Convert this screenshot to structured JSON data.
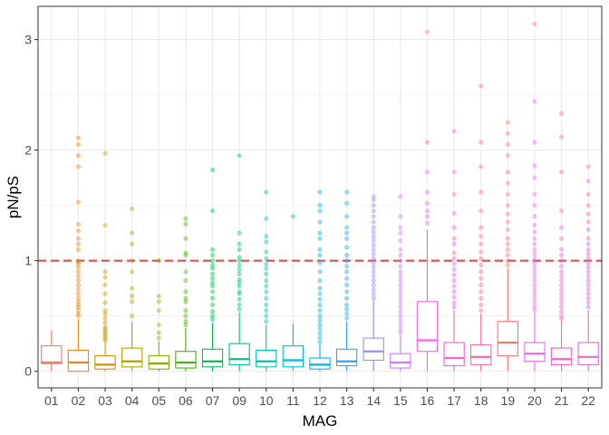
{
  "chart_data": {
    "type": "box",
    "xlabel": "MAG",
    "ylabel": "pN/pS",
    "ylim": [
      -0.15,
      3.3
    ],
    "y_ticks": [
      0,
      1,
      2,
      3
    ],
    "reference_line": 1,
    "reference_line_color": "#c0504d",
    "grid": true,
    "legend": "none",
    "categories": [
      "01",
      "02",
      "03",
      "04",
      "05",
      "06",
      "07",
      "09",
      "10",
      "11",
      "12",
      "13",
      "14",
      "15",
      "16",
      "17",
      "18",
      "19",
      "20",
      "21",
      "22"
    ],
    "colors": [
      "#F8766D",
      "#E7851E",
      "#D09400",
      "#B2A100",
      "#89AC00",
      "#45B500",
      "#00BC51",
      "#00C087",
      "#00C0B2",
      "#00BCD6",
      "#00B3F2",
      "#29A3FF",
      "#9C8DFF",
      "#D277FF",
      "#F166E8",
      "#FF61C7",
      "#FF6A9E",
      "#F8766D",
      "#E76BF3",
      "#FF61C3",
      "#E16FC8"
    ],
    "boxes": [
      {
        "name": "01",
        "q1": 0.07,
        "median": 0.08,
        "q3": 0.23,
        "whisker_low": 0.0,
        "whisker_high": 0.37,
        "outliers": []
      },
      {
        "name": "02",
        "q1": 0.0,
        "median": 0.08,
        "q3": 0.19,
        "whisker_low": 0.0,
        "whisker_high": 0.47,
        "outliers": [
          0.5,
          0.52,
          0.55,
          0.58,
          0.6,
          0.63,
          0.66,
          0.7,
          0.74,
          0.78,
          0.82,
          0.86,
          0.9,
          0.94,
          0.97,
          0.99,
          1.0,
          1.1,
          1.15,
          1.2,
          1.27,
          1.33,
          1.53,
          1.85,
          1.95,
          2.05,
          2.11
        ]
      },
      {
        "name": "03",
        "q1": 0.02,
        "median": 0.06,
        "q3": 0.14,
        "whisker_low": 0.0,
        "whisker_high": 0.27,
        "outliers": [
          0.28,
          0.3,
          0.32,
          0.34,
          0.36,
          0.38,
          0.4,
          0.44,
          0.48,
          0.52,
          0.55,
          0.62,
          0.7,
          0.78,
          0.85,
          0.9,
          1.32,
          1.97
        ]
      },
      {
        "name": "04",
        "q1": 0.04,
        "median": 0.09,
        "q3": 0.21,
        "whisker_low": 0.0,
        "whisker_high": 0.45,
        "outliers": [
          0.5,
          0.63,
          0.68,
          0.75,
          0.9,
          1.0,
          1.15,
          1.25,
          1.47
        ]
      },
      {
        "name": "05",
        "q1": 0.02,
        "median": 0.07,
        "q3": 0.14,
        "whisker_low": 0.0,
        "whisker_high": 0.27,
        "outliers": [
          0.3,
          0.35,
          0.42,
          0.55,
          0.63,
          0.68,
          1.0
        ]
      },
      {
        "name": "06",
        "q1": 0.03,
        "median": 0.08,
        "q3": 0.18,
        "whisker_low": 0.0,
        "whisker_high": 0.39,
        "outliers": [
          0.42,
          0.45,
          0.5,
          0.55,
          0.63,
          0.66,
          0.72,
          0.82,
          0.9,
          1.05,
          1.07,
          1.2,
          1.33,
          1.38
        ]
      },
      {
        "name": "07",
        "q1": 0.04,
        "median": 0.09,
        "q3": 0.2,
        "whisker_low": 0.0,
        "whisker_high": 0.44,
        "outliers": [
          0.47,
          0.5,
          0.54,
          0.6,
          0.66,
          0.72,
          0.77,
          0.8,
          0.84,
          0.88,
          0.93,
          0.96,
          1.0,
          1.05,
          1.1,
          1.45,
          1.82
        ]
      },
      {
        "name": "09",
        "q1": 0.06,
        "median": 0.11,
        "q3": 0.25,
        "whisker_low": 0.0,
        "whisker_high": 0.53,
        "outliers": [
          0.56,
          0.6,
          0.65,
          0.7,
          0.72,
          0.77,
          0.8,
          0.83,
          0.88,
          0.92,
          0.96,
          1.0,
          1.03,
          1.1,
          1.15,
          1.25,
          1.95
        ]
      },
      {
        "name": "10",
        "q1": 0.04,
        "median": 0.09,
        "q3": 0.19,
        "whisker_low": 0.0,
        "whisker_high": 0.42,
        "outliers": [
          0.45,
          0.5,
          0.55,
          0.6,
          0.66,
          0.72,
          0.77,
          0.82,
          0.88,
          0.93,
          0.97,
          1.02,
          1.08,
          1.17,
          1.22,
          1.38,
          1.62
        ]
      },
      {
        "name": "11",
        "q1": 0.04,
        "median": 0.1,
        "q3": 0.23,
        "whisker_low": 0.0,
        "whisker_high": 0.43,
        "outliers": [
          1.4
        ]
      },
      {
        "name": "12",
        "q1": 0.02,
        "median": 0.06,
        "q3": 0.12,
        "whisker_low": 0.0,
        "whisker_high": 0.24,
        "outliers": [
          0.26,
          0.3,
          0.34,
          0.38,
          0.42,
          0.46,
          0.5,
          0.55,
          0.6,
          0.65,
          0.7,
          0.75,
          0.82,
          0.9,
          0.98,
          1.05,
          1.1,
          1.2,
          1.25,
          1.35,
          1.45,
          1.5,
          1.62
        ]
      },
      {
        "name": "13",
        "q1": 0.05,
        "median": 0.09,
        "q3": 0.2,
        "whisker_low": 0.0,
        "whisker_high": 0.45,
        "outliers": [
          0.48,
          0.52,
          0.56,
          0.6,
          0.66,
          0.72,
          0.78,
          0.84,
          0.9,
          0.95,
          1.0,
          1.05,
          1.12,
          1.2,
          1.25,
          1.3,
          1.4,
          1.52,
          1.62
        ]
      },
      {
        "name": "14",
        "q1": 0.1,
        "median": 0.18,
        "q3": 0.3,
        "whisker_low": 0.0,
        "whisker_high": 0.64,
        "outliers": [
          0.66,
          0.7,
          0.74,
          0.78,
          0.82,
          0.86,
          0.9,
          0.94,
          0.98,
          1.02,
          1.06,
          1.1,
          1.14,
          1.18,
          1.22,
          1.26,
          1.3,
          1.35,
          1.4,
          1.45,
          1.5,
          1.55,
          1.58
        ]
      },
      {
        "name": "15",
        "q1": 0.03,
        "median": 0.08,
        "q3": 0.16,
        "whisker_low": 0.0,
        "whisker_high": 0.33,
        "outliers": [
          0.35,
          0.38,
          0.42,
          0.46,
          0.5,
          0.54,
          0.58,
          0.62,
          0.66,
          0.7,
          0.74,
          0.78,
          0.82,
          0.86,
          0.9,
          0.95,
          1.0,
          1.05,
          1.1,
          1.18,
          1.25,
          1.3,
          1.4,
          1.58
        ]
      },
      {
        "name": "16",
        "q1": 0.18,
        "median": 0.28,
        "q3": 0.63,
        "whisker_low": 0.0,
        "whisker_high": 1.28,
        "outliers": [
          1.34,
          1.4,
          1.45,
          1.52,
          1.62,
          1.8,
          2.07,
          3.07
        ]
      },
      {
        "name": "17",
        "q1": 0.05,
        "median": 0.12,
        "q3": 0.26,
        "whisker_low": 0.0,
        "whisker_high": 0.55,
        "outliers": [
          0.58,
          0.62,
          0.67,
          0.72,
          0.77,
          0.82,
          0.87,
          0.92,
          0.97,
          1.02,
          1.07,
          1.15,
          1.2,
          1.3,
          1.43,
          1.6,
          1.8,
          2.17
        ]
      },
      {
        "name": "18",
        "q1": 0.06,
        "median": 0.13,
        "q3": 0.24,
        "whisker_low": 0.0,
        "whisker_high": 0.52,
        "outliers": [
          0.55,
          0.6,
          0.66,
          0.72,
          0.78,
          0.84,
          0.9,
          0.96,
          1.02,
          1.08,
          1.15,
          1.22,
          1.3,
          1.45,
          1.62,
          1.85,
          2.07,
          2.58
        ]
      },
      {
        "name": "19",
        "q1": 0.14,
        "median": 0.26,
        "q3": 0.45,
        "whisker_low": 0.0,
        "whisker_high": 0.93,
        "outliers": [
          0.96,
          1.0,
          1.05,
          1.1,
          1.15,
          1.2,
          1.28,
          1.35,
          1.42,
          1.5,
          1.6,
          1.7,
          1.8,
          1.95,
          2.05,
          2.15,
          2.25
        ]
      },
      {
        "name": "20",
        "q1": 0.09,
        "median": 0.16,
        "q3": 0.26,
        "whisker_low": 0.0,
        "whisker_high": 0.53,
        "outliers": [
          0.55,
          0.58,
          0.62,
          0.66,
          0.7,
          0.74,
          0.78,
          0.82,
          0.86,
          0.9,
          0.94,
          0.98,
          1.02,
          1.06,
          1.1,
          1.15,
          1.2,
          1.26,
          1.32,
          1.4,
          1.5,
          1.6,
          1.75,
          1.86,
          2.07,
          2.44,
          3.14
        ]
      },
      {
        "name": "21",
        "q1": 0.06,
        "median": 0.11,
        "q3": 0.21,
        "whisker_low": 0.0,
        "whisker_high": 0.45,
        "outliers": [
          0.47,
          0.5,
          0.54,
          0.58,
          0.62,
          0.66,
          0.7,
          0.74,
          0.78,
          0.82,
          0.86,
          0.9,
          0.95,
          1.0,
          1.05,
          1.1,
          1.2,
          1.3,
          1.45,
          1.8,
          2.12,
          2.33
        ]
      },
      {
        "name": "22",
        "q1": 0.06,
        "median": 0.13,
        "q3": 0.26,
        "whisker_low": 0.0,
        "whisker_high": 0.55,
        "outliers": [
          0.58,
          0.62,
          0.66,
          0.7,
          0.74,
          0.78,
          0.82,
          0.86,
          0.9,
          0.94,
          0.98,
          1.02,
          1.06,
          1.1,
          1.15,
          1.2,
          1.28,
          1.35,
          1.42,
          1.5,
          1.6,
          1.72,
          1.85
        ]
      }
    ]
  }
}
